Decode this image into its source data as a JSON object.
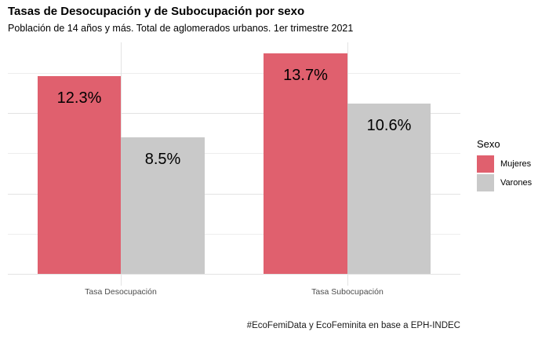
{
  "header": {
    "title": "Tasas de Desocupación y de Subocupación por sexo",
    "subtitle": "Población de 14 años y más. Total de aglomerados urbanos. 1er trimestre 2021"
  },
  "caption": "#EcoFemiData y EcoFeminita en base a EPH-INDEC",
  "legend": {
    "title": "Sexo",
    "items": [
      {
        "label": "Mujeres",
        "color": "#e0606e"
      },
      {
        "label": "Varones",
        "color": "#c9c9c9"
      }
    ]
  },
  "chart_data": {
    "type": "bar",
    "title": "Tasas de Desocupación y de Subocupación por sexo",
    "subtitle": "Población de 14 años y más. Total de aglomerados urbanos. 1er trimestre 2021",
    "categories": [
      "Tasa Desocupación",
      "Tasa Subocupación"
    ],
    "series": [
      {
        "name": "Mujeres",
        "color": "#e0606e",
        "values": [
          12.3,
          13.7
        ],
        "labels": [
          "12.3%",
          "13.7%"
        ]
      },
      {
        "name": "Varones",
        "color": "#c9c9c9",
        "values": [
          8.5,
          10.6
        ],
        "labels": [
          "8.5%",
          "10.6%"
        ]
      }
    ],
    "xlabel": "",
    "ylabel": "",
    "ylim": [
      0,
      14.4
    ],
    "grid": {
      "major": [
        0,
        5,
        10
      ],
      "minor": [
        2.5,
        7.5,
        12.5
      ]
    },
    "legend_position": "right",
    "legend_title": "Sexo",
    "bar_label_format": "percent"
  }
}
